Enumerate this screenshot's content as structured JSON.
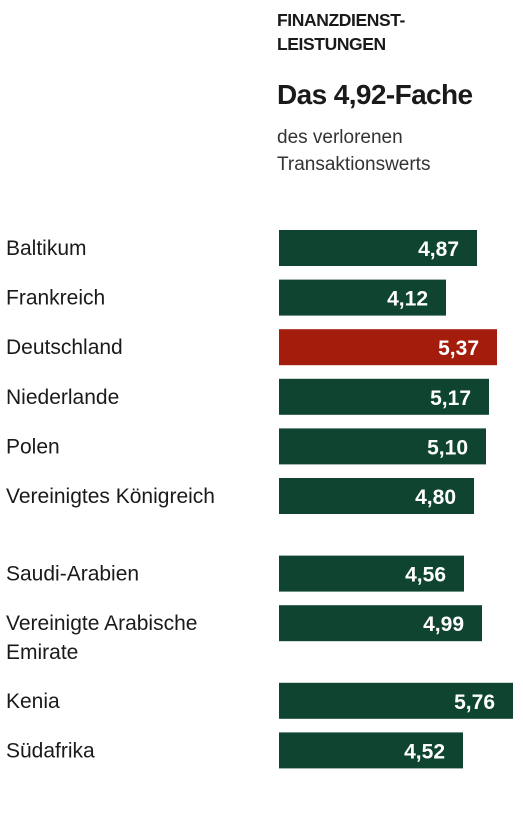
{
  "header": {
    "title": "FINANZDIENST-\nLEISTUNGEN",
    "headline": "Das 4,92-Fache",
    "subtitle": "des verlorenen\nTransaktionswerts"
  },
  "colors": {
    "bar_default": "#0f4530",
    "bar_highlight": "#a41c0b",
    "value_text": "#ffffff",
    "category_text": "#1a1a1a"
  },
  "chart_data": {
    "type": "bar",
    "orientation": "horizontal",
    "categories": [
      "Baltikum",
      "Frankreich",
      "Deutschland",
      "Niederlande",
      "Polen",
      "Vereinigtes Königreich",
      "Saudi-Arabien",
      "Vereinigte Arabische\nEmirate",
      "Kenia",
      "Südafrika"
    ],
    "values": [
      4.87,
      4.12,
      5.37,
      5.17,
      5.1,
      4.8,
      4.56,
      4.99,
      5.76,
      4.52
    ],
    "value_labels": [
      "4,87",
      "4,12",
      "5,37",
      "5,17",
      "5,10",
      "4,80",
      "4,56",
      "4,99",
      "5,76",
      "4,52"
    ],
    "groups": [
      [
        "Baltikum",
        "Frankreich",
        "Deutschland",
        "Niederlande",
        "Polen",
        "Vereinigtes Königreich"
      ],
      [
        "Saudi-Arabien",
        "Vereinigte Arabische\nEmirate"
      ],
      [
        "Kenia",
        "Südafrika"
      ]
    ],
    "highlight": "Deutschland",
    "xlim": [
      0,
      5.76
    ],
    "grid": false,
    "legend": "none"
  }
}
